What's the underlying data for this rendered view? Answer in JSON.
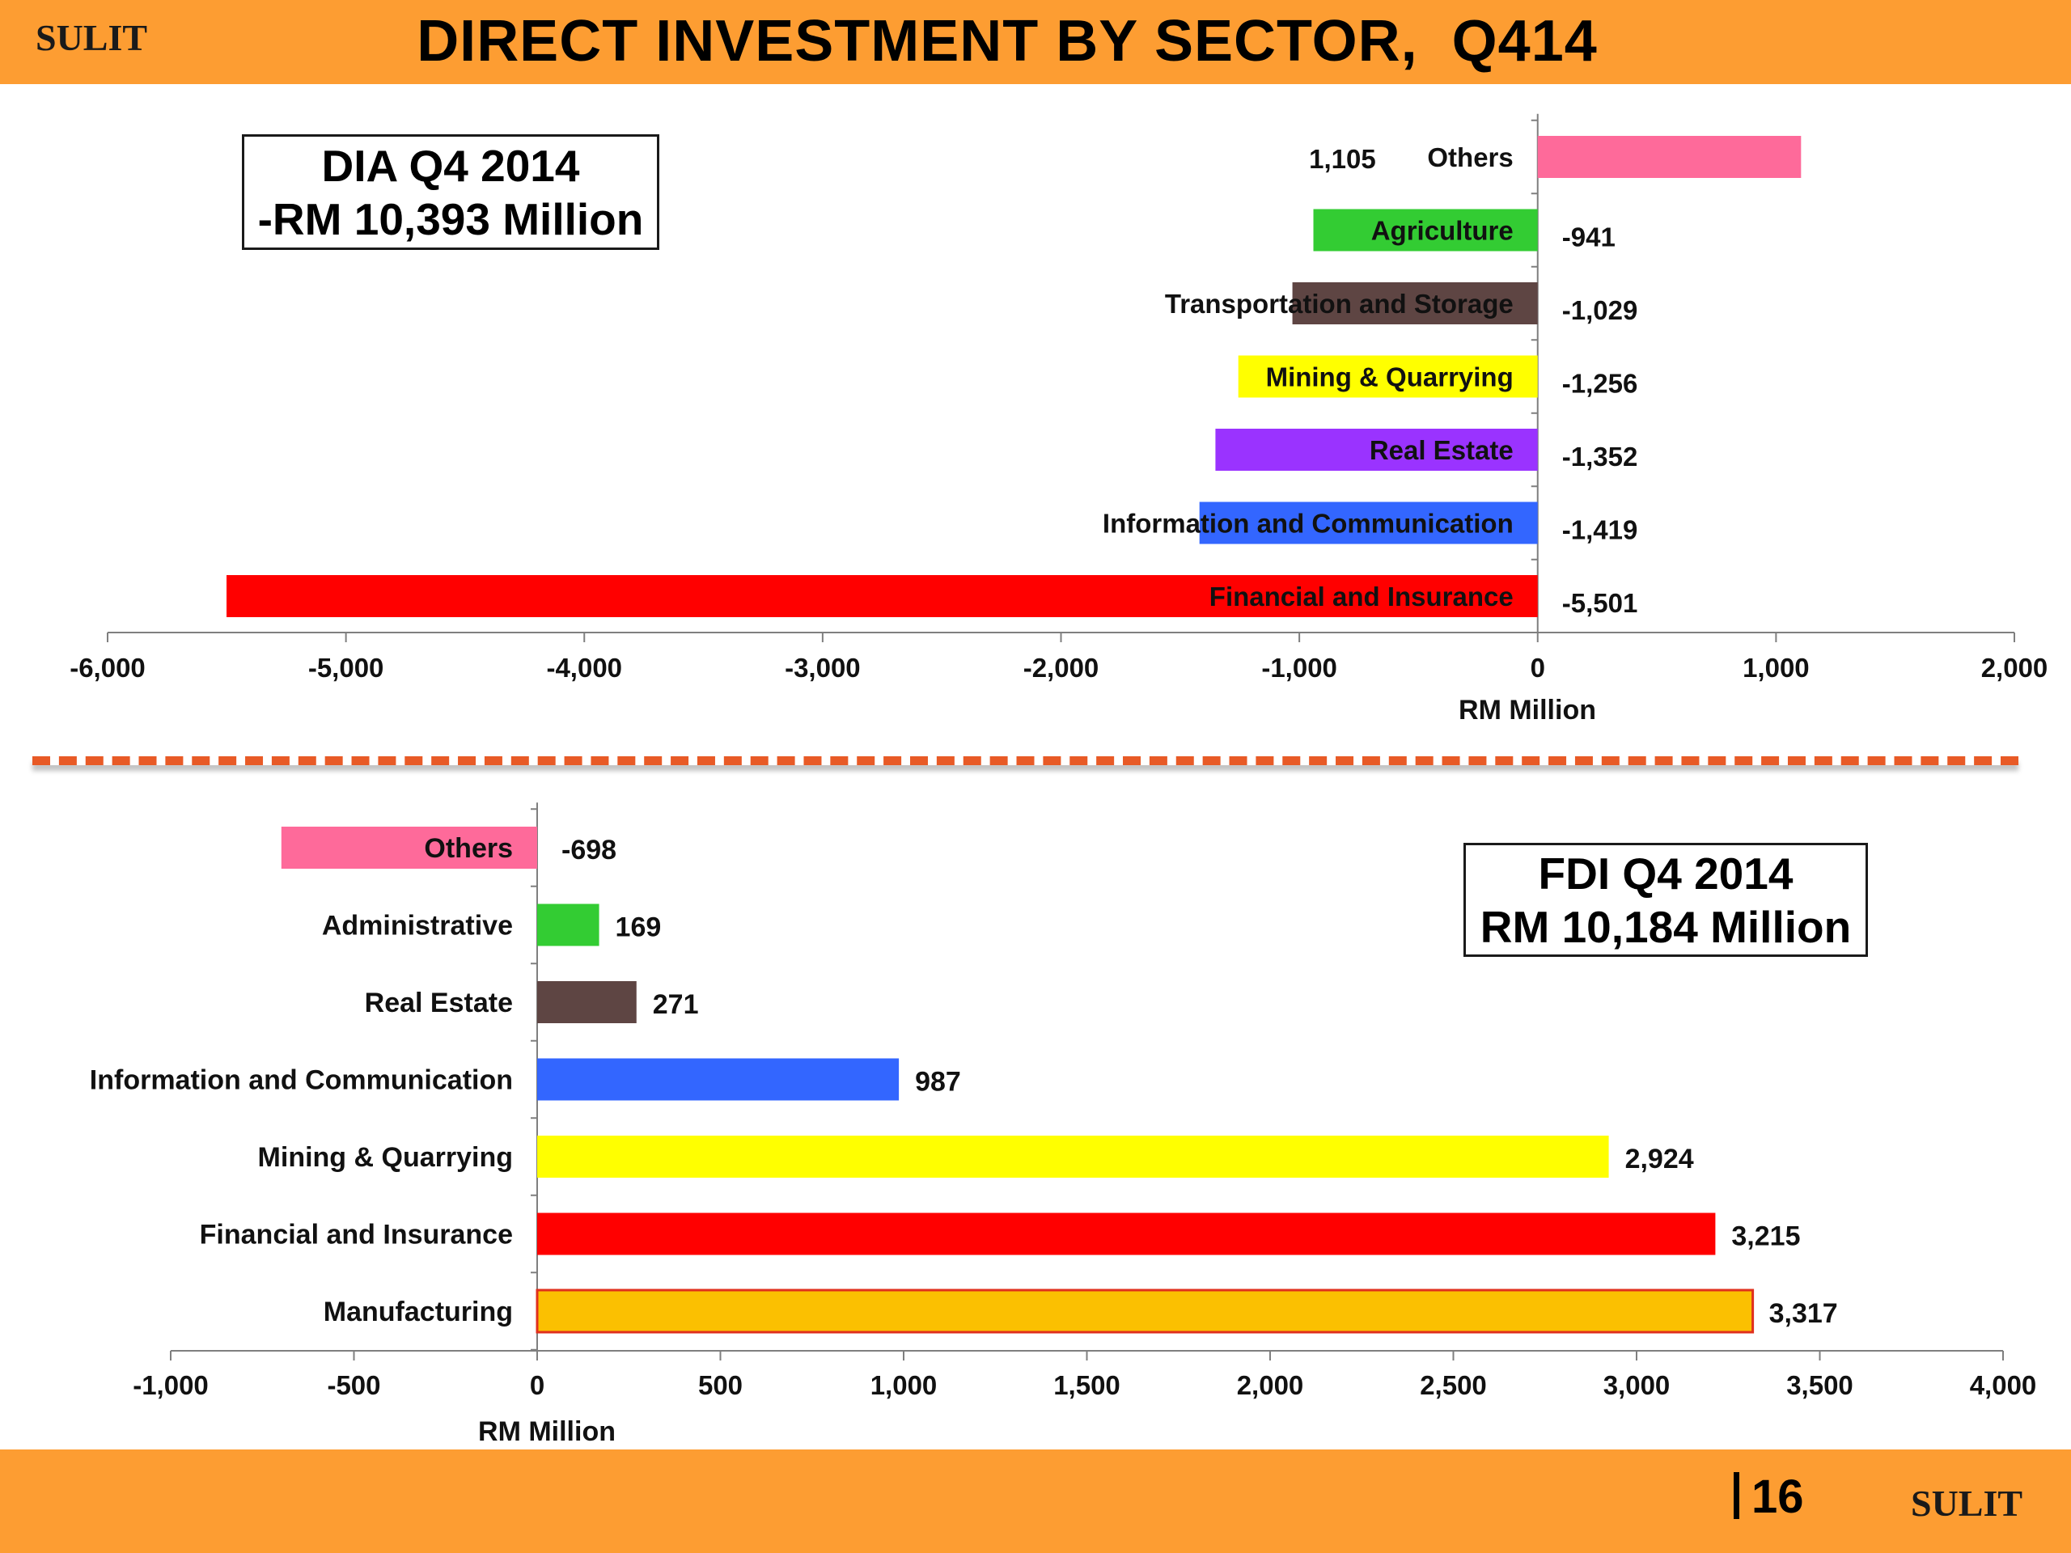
{
  "header": {
    "brand": "SULIT",
    "title": "DIRECT INVESTMENT BY SECTOR,  Q414"
  },
  "footer": {
    "page_number": "16",
    "brand": "SULIT"
  },
  "boxes": {
    "dia": {
      "line1": "DIA Q4 2014",
      "line2": "-RM 10,393 Million"
    },
    "fdi": {
      "line1": "FDI Q4 2014",
      "line2": "RM 10,184 Million"
    }
  },
  "colors": {
    "header_band": "#fd9d32",
    "divider": "#e85a26"
  },
  "chart_data": [
    {
      "type": "bar",
      "orientation": "horizontal",
      "title": "",
      "xlabel": "RM Million",
      "ylabel": "",
      "xlim": [
        -6000,
        2000
      ],
      "xticks": [
        -6000,
        -5000,
        -4000,
        -3000,
        -2000,
        -1000,
        0,
        1000,
        2000
      ],
      "xtick_labels": [
        "-6,000",
        "-5,000",
        "-4,000",
        "-3,000",
        "-2,000",
        "-1,000",
        "0",
        "1,000",
        "2,000"
      ],
      "grid": false,
      "categories": [
        "Others",
        "Agriculture",
        "Transportation and Storage",
        "Mining & Quarrying",
        "Real Estate",
        "Information and Communication",
        "Financial and Insurance"
      ],
      "values": [
        1105,
        -941,
        -1029,
        -1256,
        -1352,
        -1419,
        -5501
      ],
      "value_labels": [
        "1,105",
        "-941",
        "-1,029",
        "-1,256",
        "-1,352",
        "-1,419",
        "-5,501"
      ],
      "colors": [
        "#fe6a9a",
        "#33cc33",
        "#5e4543",
        "#ffff00",
        "#9a33ff",
        "#3366ff",
        "#ff0000"
      ]
    },
    {
      "type": "bar",
      "orientation": "horizontal",
      "title": "",
      "xlabel": "RM Million",
      "ylabel": "",
      "xlim": [
        -1000,
        4000
      ],
      "xticks": [
        -1000,
        -500,
        0,
        500,
        1000,
        1500,
        2000,
        2500,
        3000,
        3500,
        4000
      ],
      "xtick_labels": [
        "-1,000",
        "-500",
        "0",
        "500",
        "1,000",
        "1,500",
        "2,000",
        "2,500",
        "3,000",
        "3,500",
        "4,000"
      ],
      "grid": false,
      "categories": [
        "Others",
        "Administrative",
        "Real Estate",
        "Information and Communication",
        "Mining & Quarrying",
        "Financial and Insurance",
        "Manufacturing"
      ],
      "values": [
        -698,
        169,
        271,
        987,
        2924,
        3215,
        3317
      ],
      "value_labels": [
        "-698",
        "169",
        "271",
        "987",
        "2,924",
        "3,215",
        "3,317"
      ],
      "colors": [
        "#fe6a9a",
        "#33cc33",
        "#5e4543",
        "#3366ff",
        "#ffff00",
        "#ff0000",
        "#fbc001"
      ]
    }
  ]
}
